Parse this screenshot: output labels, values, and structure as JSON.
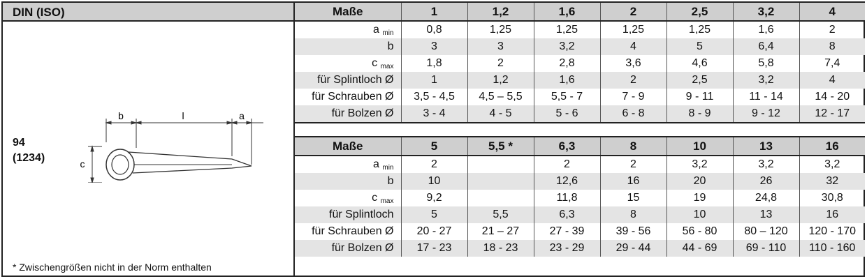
{
  "header": {
    "din_iso": "DIN (ISO)"
  },
  "norm": {
    "din": "94",
    "iso": "(1234)"
  },
  "footnote": "* Zwischengrößen nicht in der Norm enthalten",
  "drawing": {
    "label_b": "b",
    "label_l": "l",
    "label_a": "a",
    "label_c": "c"
  },
  "table1": {
    "header_label": "Maße",
    "sizes": [
      "1",
      "1,2",
      "1,6",
      "2",
      "2,5",
      "3,2",
      "4"
    ],
    "rows": [
      {
        "label": "a",
        "sub": "min",
        "values": [
          "0,8",
          "1,25",
          "1,25",
          "1,25",
          "1,25",
          "1,6",
          "2"
        ]
      },
      {
        "label": "b",
        "sub": "",
        "values": [
          "3",
          "3",
          "3,2",
          "4",
          "5",
          "6,4",
          "8"
        ]
      },
      {
        "label": "c",
        "sub": "max",
        "values": [
          "1,8",
          "2",
          "2,8",
          "3,6",
          "4,6",
          "5,8",
          "7,4"
        ]
      },
      {
        "label": "für Splintloch Ø",
        "sub": "",
        "values": [
          "1",
          "1,2",
          "1,6",
          "2",
          "2,5",
          "3,2",
          "4"
        ]
      },
      {
        "label": "für Schrauben Ø",
        "sub": "",
        "values": [
          "3,5 - 4,5",
          "4,5 – 5,5",
          "5,5 - 7",
          "7 - 9",
          "9 - 11",
          "11 - 14",
          "14 - 20"
        ]
      },
      {
        "label": "für Bolzen Ø",
        "sub": "",
        "values": [
          "3 - 4",
          "4 - 5",
          "5 - 6",
          "6 - 8",
          "8 - 9",
          "9 - 12",
          "12 - 17"
        ]
      }
    ]
  },
  "table2": {
    "header_label": "Maße",
    "sizes": [
      "5",
      "5,5 *",
      "6,3",
      "8",
      "10",
      "13",
      "16"
    ],
    "rows": [
      {
        "label": "a",
        "sub": "min",
        "values": [
          "2",
          "",
          "2",
          "2",
          "3,2",
          "3,2",
          "3,2"
        ]
      },
      {
        "label": "b",
        "sub": "",
        "values": [
          "10",
          "",
          "12,6",
          "16",
          "20",
          "26",
          "32"
        ]
      },
      {
        "label": "c",
        "sub": "max",
        "values": [
          "9,2",
          "",
          "11,8",
          "15",
          "19",
          "24,8",
          "30,8"
        ]
      },
      {
        "label": "für Splintloch",
        "sub": "",
        "values": [
          "5",
          "5,5",
          "6,3",
          "8",
          "10",
          "13",
          "16"
        ]
      },
      {
        "label": "für Schrauben Ø",
        "sub": "",
        "values": [
          "20 - 27",
          "21 – 27",
          "27 - 39",
          "39 - 56",
          "56 - 80",
          "80 – 120",
          "120 - 170"
        ]
      },
      {
        "label": "für Bolzen Ø",
        "sub": "",
        "values": [
          "17 - 23",
          "18 - 23",
          "23 - 29",
          "29 - 44",
          "44 - 69",
          "69 - 110",
          "110 - 160"
        ]
      }
    ]
  }
}
